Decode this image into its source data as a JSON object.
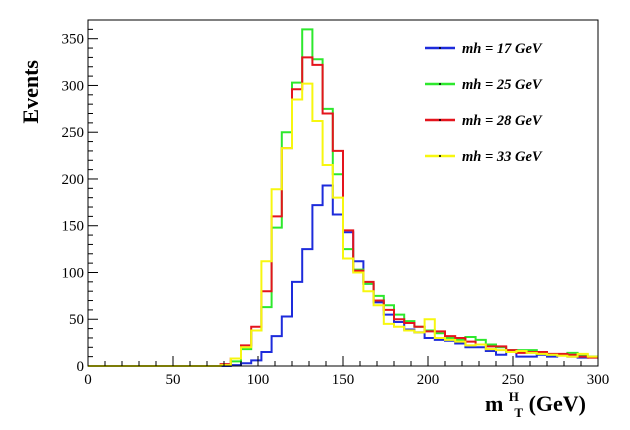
{
  "chart_data": {
    "type": "line",
    "style": "step-histogram",
    "title": "",
    "ylabel": "Events",
    "xlabel": {
      "main": "m",
      "superscript": "H",
      "subscript": "T",
      "unit": " (GeV)"
    },
    "xlim": [
      0,
      300
    ],
    "ylim": [
      0,
      370
    ],
    "x_ticks": [
      "0",
      "50",
      "100",
      "150",
      "200",
      "250",
      "300"
    ],
    "y_ticks": [
      "0",
      "50",
      "100",
      "150",
      "200",
      "250",
      "300",
      "350"
    ],
    "bin_width": 6,
    "x_bin_edges_start": 0,
    "legend_position": "top-right",
    "series": [
      {
        "name": "mh = 17 GeV",
        "color": "#1d2bdb",
        "values": [
          0,
          0,
          0,
          0,
          0,
          0,
          0,
          0,
          0,
          0,
          0,
          0,
          0,
          0,
          1,
          3,
          6,
          15,
          32,
          53,
          90,
          125,
          172,
          193,
          162,
          143,
          112,
          88,
          68,
          55,
          47,
          39,
          36,
          30,
          28,
          27,
          24,
          20,
          20,
          16,
          12,
          15,
          10,
          10,
          12,
          10,
          12,
          10,
          9,
          10
        ]
      },
      {
        "name": "mh = 25 GeV",
        "color": "#2de82d",
        "values": [
          0,
          0,
          0,
          0,
          0,
          0,
          0,
          0,
          0,
          0,
          0,
          0,
          0,
          1,
          5,
          18,
          38,
          63,
          148,
          250,
          303,
          360,
          328,
          275,
          205,
          125,
          103,
          88,
          75,
          65,
          55,
          48,
          42,
          38,
          35,
          30,
          28,
          31,
          28,
          23,
          20,
          17,
          17,
          17,
          13,
          12,
          12,
          14,
          11,
          10
        ]
      },
      {
        "name": "mh = 28 GeV",
        "color": "#e4141d",
        "values": [
          0,
          0,
          0,
          0,
          0,
          0,
          0,
          0,
          0,
          0,
          0,
          0,
          0,
          2,
          8,
          22,
          42,
          80,
          160,
          233,
          296,
          330,
          322,
          270,
          230,
          145,
          102,
          90,
          70,
          60,
          50,
          46,
          42,
          37,
          37,
          32,
          30,
          26,
          23,
          21,
          21,
          17,
          14,
          15,
          15,
          13,
          13,
          12,
          10,
          9
        ]
      },
      {
        "name": "mh = 33 GeV",
        "color": "#f7f70f",
        "values": [
          0,
          0,
          0,
          0,
          0,
          0,
          0,
          0,
          0,
          0,
          0,
          0,
          0,
          1,
          8,
          20,
          38,
          112,
          189,
          233,
          285,
          302,
          262,
          215,
          180,
          115,
          100,
          80,
          65,
          45,
          42,
          38,
          36,
          50,
          30,
          28,
          26,
          22,
          23,
          18,
          17,
          15,
          16,
          14,
          13,
          12,
          11,
          10,
          13,
          10
        ]
      }
    ]
  }
}
